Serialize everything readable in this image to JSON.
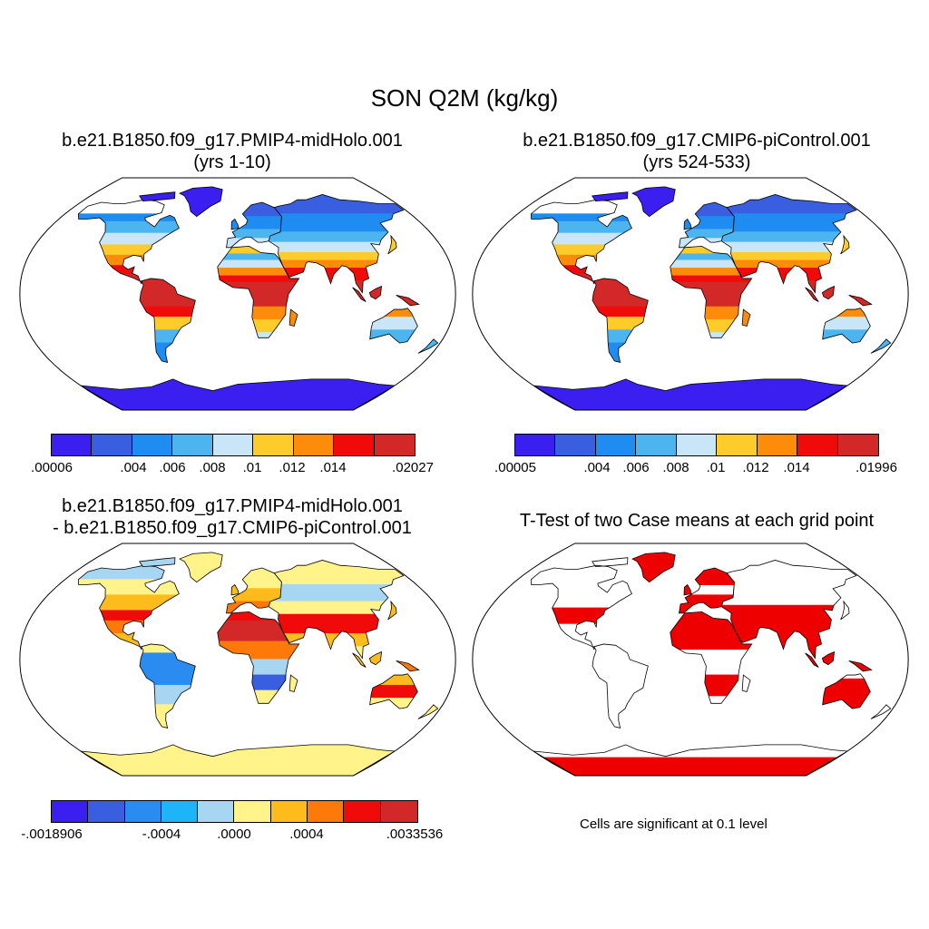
{
  "title": "SON Q2M (kg/kg)",
  "colors": {
    "ocean": "#ffffff",
    "coast": "#000000",
    "significant": "#ee0000",
    "abs_palette": [
      "#3a1ff0",
      "#3a5ee0",
      "#1e8cf0",
      "#4cb4ee",
      "#c8e6f8",
      "#fdcc2b",
      "#fd8c0a",
      "#f00a0a",
      "#d22828"
    ],
    "diff_palette": [
      "#3a1ff0",
      "#3a5ee0",
      "#2a8cf0",
      "#1eb4f8",
      "#a6d6f2",
      "#fff389",
      "#fdbc1c",
      "#fd7a0a",
      "#f00a0a",
      "#d22828"
    ]
  },
  "panels": {
    "p1": {
      "title_line1": "b.e21.B1850.f09_g17.PMIP4-midHolo.001",
      "title_line2": "(yrs 1-10)",
      "colorbar_labels": [
        ".00006",
        ".004",
        ".006",
        ".008",
        ".01",
        ".012",
        ".014",
        ".02027"
      ]
    },
    "p2": {
      "title_line1": "b.e21.B1850.f09_g17.CMIP6-piControl.001",
      "title_line2": "(yrs 524-533)",
      "colorbar_labels": [
        ".00005",
        ".004",
        ".006",
        ".008",
        ".01",
        ".012",
        ".014",
        ".01996"
      ]
    },
    "p3": {
      "title_line1": "b.e21.B1850.f09_g17.PMIP4-midHolo.001",
      "title_line2": "- b.e21.B1850.f09_g17.CMIP6-piControl.001",
      "colorbar_labels": [
        "-.0018906",
        "-.0004",
        ".0000",
        ".0004",
        ".0033536"
      ]
    },
    "p4": {
      "title_line1": "T-Test of two Case means at each grid point",
      "note": "Cells are significant at 0.1 level"
    }
  }
}
